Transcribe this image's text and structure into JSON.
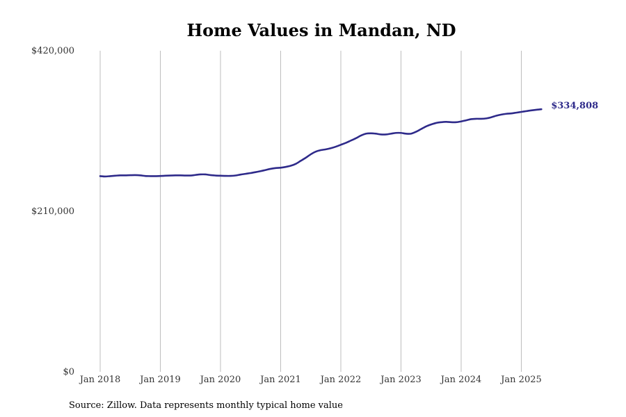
{
  "chart_data": {
    "type": "line",
    "title": "Home Values in Mandan, ND",
    "source": "Source: Zillow. Data represents monthly typical home value",
    "line_color": "#2e2a8a",
    "grid": "vertical",
    "y_ticks": [
      {
        "value": 0,
        "label": "$0"
      },
      {
        "value": 210000,
        "label": "$210,000"
      },
      {
        "value": 420000,
        "label": "$420,000"
      }
    ],
    "ylim": [
      0,
      420000
    ],
    "xlim": [
      "2018-01",
      "2025-05"
    ],
    "x_ticks": [
      {
        "value": "2018-01",
        "label": "Jan 2018"
      },
      {
        "value": "2019-01",
        "label": "Jan 2019"
      },
      {
        "value": "2020-01",
        "label": "Jan 2020"
      },
      {
        "value": "2021-01",
        "label": "Jan 2021"
      },
      {
        "value": "2022-01",
        "label": "Jan 2022"
      },
      {
        "value": "2023-01",
        "label": "Jan 2023"
      },
      {
        "value": "2024-01",
        "label": "Jan 2024"
      },
      {
        "value": "2025-01",
        "label": "Jan 2025"
      }
    ],
    "end_label": "$334,808",
    "series": [
      {
        "x": [
          "2018-01",
          "2018-02",
          "2018-03",
          "2018-04",
          "2018-05",
          "2018-06",
          "2018-07",
          "2018-08",
          "2018-09",
          "2018-10",
          "2018-11",
          "2018-12",
          "2019-01",
          "2019-02",
          "2019-03",
          "2019-04",
          "2019-05",
          "2019-06",
          "2019-07",
          "2019-08",
          "2019-09",
          "2019-10",
          "2019-11",
          "2019-12",
          "2020-01",
          "2020-02",
          "2020-03",
          "2020-04",
          "2020-05",
          "2020-06",
          "2020-07",
          "2020-08",
          "2020-09",
          "2020-10",
          "2020-11",
          "2020-12",
          "2021-01",
          "2021-02",
          "2021-03",
          "2021-04",
          "2021-05",
          "2021-06",
          "2021-07",
          "2021-08",
          "2021-09",
          "2021-10",
          "2021-11",
          "2021-12",
          "2022-01",
          "2022-02",
          "2022-03",
          "2022-04",
          "2022-05",
          "2022-06",
          "2022-07",
          "2022-08",
          "2022-09",
          "2022-10",
          "2022-11",
          "2022-12",
          "2023-01",
          "2023-02",
          "2023-03",
          "2023-04",
          "2023-05",
          "2023-06",
          "2023-07",
          "2023-08",
          "2023-09",
          "2023-10",
          "2023-11",
          "2023-12",
          "2024-01",
          "2024-02",
          "2024-03",
          "2024-04",
          "2024-05",
          "2024-06",
          "2024-07",
          "2024-08",
          "2024-09",
          "2024-10",
          "2024-11",
          "2024-12",
          "2025-01",
          "2025-02",
          "2025-03",
          "2025-04",
          "2025-05"
        ],
        "y": [
          256000,
          255500,
          256000,
          256500,
          257000,
          257000,
          257200,
          257300,
          257000,
          256200,
          256000,
          256000,
          256200,
          256500,
          256800,
          257000,
          257000,
          256800,
          256800,
          257500,
          258200,
          258200,
          257300,
          256800,
          256500,
          256300,
          256300,
          256800,
          258000,
          259000,
          260000,
          261200,
          262500,
          264000,
          265500,
          266500,
          267000,
          268000,
          269500,
          272000,
          276000,
          280000,
          284500,
          288000,
          290000,
          291000,
          292500,
          294500,
          297000,
          299500,
          302500,
          305500,
          309000,
          311500,
          312000,
          311500,
          310500,
          310500,
          311500,
          312500,
          312500,
          311500,
          311500,
          314000,
          317500,
          321000,
          323500,
          325500,
          326500,
          327000,
          326500,
          326500,
          327500,
          329000,
          330500,
          331000,
          331000,
          331500,
          333000,
          335000,
          336500,
          337500,
          338000,
          339000,
          340000,
          341000,
          342000,
          342800,
          334808
        ]
      }
    ]
  }
}
